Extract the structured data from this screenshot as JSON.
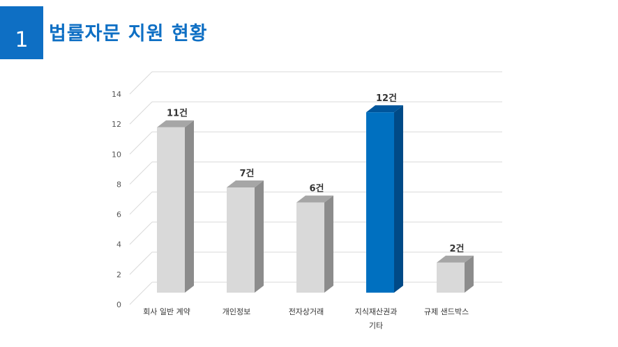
{
  "header": {
    "number": "1",
    "title": "법률자문 지원 현황"
  },
  "chart_data": {
    "type": "bar",
    "categories": [
      "회사 일반 계약",
      "개인정보",
      "전자상거래",
      "지식재산권과\n기타",
      "규제 샌드박스"
    ],
    "values": [
      11,
      7,
      6,
      12,
      2
    ],
    "data_labels": [
      "11건",
      "7건",
      "6건",
      "12건",
      "2건"
    ],
    "y_ticks": [
      "0",
      "2",
      "4",
      "6",
      "8",
      "10",
      "12",
      "14"
    ],
    "ylim": [
      0,
      14
    ],
    "grid": true,
    "style": "3d",
    "colors": [
      "#d9d9d9",
      "#d9d9d9",
      "#d9d9d9",
      "#0070c0",
      "#d9d9d9"
    ],
    "side_colors": [
      "#8c8c8c",
      "#8c8c8c",
      "#8c8c8c",
      "#004a87",
      "#8c8c8c"
    ],
    "top_colors": [
      "#a6a6a6",
      "#a6a6a6",
      "#a6a6a6",
      "#00559b",
      "#a6a6a6"
    ]
  }
}
